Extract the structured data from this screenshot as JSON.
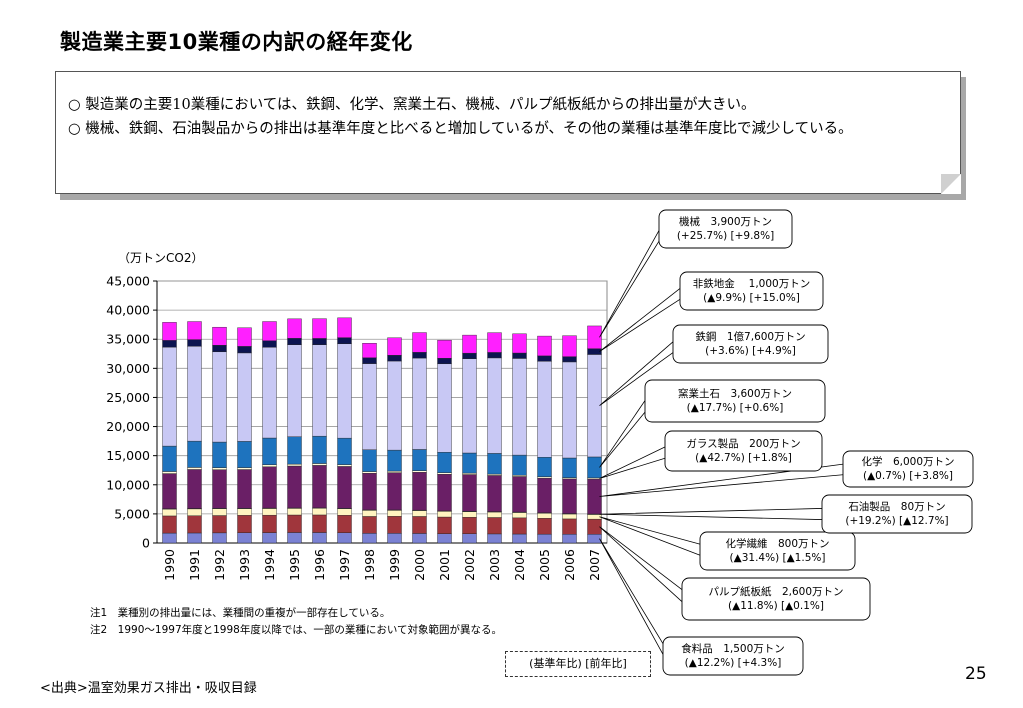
{
  "title": "製造業主要10業種の内訳の経年変化",
  "summary": [
    "○ 製造業の主要10業種においては、鉄鋼、化学、窯業土石、機械、パルプ紙板紙からの排出量が大きい。",
    "○ 機械、鉄鋼、石油製品からの排出は基準年度と比べると増加しているが、その他の業種は基準年度比で減少している。"
  ],
  "notes": [
    "注1　業種別の排出量には、業種間の重複が一部存在している。",
    "注2　1990～1997年度と1998年度以降では、一部の業種において対象範囲が異なる。"
  ],
  "source": "<出典>温室効果ガス排出・吸収目録",
  "page_number": "25",
  "base_legend": "(基準年比) [前年比]",
  "chart_data": {
    "type": "bar",
    "stacked": true,
    "ylabel": "（万トンCO2）",
    "ylim": [
      0,
      45000
    ],
    "yticks": [
      "0",
      "5,000",
      "10,000",
      "15,000",
      "20,000",
      "25,000",
      "30,000",
      "35,000",
      "40,000",
      "45,000"
    ],
    "categories": [
      "1990",
      "1991",
      "1992",
      "1993",
      "1994",
      "1995",
      "1996",
      "1997",
      "1998",
      "1999",
      "2000",
      "2001",
      "2002",
      "2003",
      "2004",
      "2005",
      "2006",
      "2007"
    ],
    "series": [
      {
        "name": "食料品",
        "color": "#7b82d4",
        "values": [
          1700,
          1720,
          1740,
          1760,
          1780,
          1800,
          1800,
          1760,
          1660,
          1660,
          1640,
          1600,
          1580,
          1560,
          1540,
          1520,
          1500,
          1500
        ]
      },
      {
        "name": "パルプ紙板紙",
        "color": "#a0363c",
        "values": [
          2950,
          2970,
          2980,
          2990,
          3000,
          3010,
          3020,
          3000,
          2900,
          2920,
          2920,
          2860,
          2840,
          2820,
          2780,
          2720,
          2640,
          2600
        ]
      },
      {
        "name": "化学繊維",
        "color": "#fff4c0",
        "values": [
          1170,
          1170,
          1160,
          1150,
          1150,
          1140,
          1140,
          1120,
          1050,
          1030,
          1010,
          980,
          960,
          940,
          920,
          880,
          840,
          800
        ]
      },
      {
        "name": "石油製品",
        "color": "#b0b0e8",
        "values": [
          67,
          68,
          68,
          69,
          70,
          71,
          72,
          73,
          74,
          75,
          76,
          77,
          78,
          79,
          80,
          80,
          80,
          80
        ]
      },
      {
        "name": "化学",
        "color": "#6a1f66",
        "values": [
          6040,
          6700,
          6650,
          6650,
          7100,
          7200,
          7300,
          7200,
          6300,
          6400,
          6500,
          6300,
          6300,
          6200,
          6100,
          5950,
          5950,
          6000
        ]
      },
      {
        "name": "ガラス製品",
        "color": "#fff8d8",
        "values": [
          350,
          350,
          340,
          330,
          330,
          330,
          320,
          310,
          280,
          270,
          270,
          260,
          250,
          240,
          230,
          220,
          210,
          200
        ]
      },
      {
        "name": "窯業土石",
        "color": "#1e73be",
        "values": [
          4370,
          4520,
          4400,
          4500,
          4600,
          4700,
          4700,
          4550,
          3750,
          3600,
          3650,
          3500,
          3450,
          3550,
          3450,
          3350,
          3380,
          3600
        ]
      },
      {
        "name": "鉄鋼",
        "color": "#c8c8f4",
        "values": [
          17000,
          16300,
          15500,
          15200,
          15600,
          15800,
          15700,
          16200,
          14800,
          15300,
          15700,
          15200,
          16200,
          16400,
          16600,
          16500,
          16500,
          17600
        ]
      },
      {
        "name": "非鉄地金",
        "color": "#0c1450",
        "values": [
          1150,
          1140,
          1130,
          1120,
          1110,
          1100,
          1080,
          1060,
          1000,
          990,
          980,
          960,
          950,
          940,
          930,
          920,
          910,
          1000
        ]
      },
      {
        "name": "機械",
        "color": "#ff20ff",
        "values": [
          3100,
          3100,
          3100,
          3200,
          3300,
          3350,
          3400,
          3400,
          2500,
          3000,
          3400,
          3100,
          3100,
          3400,
          3300,
          3400,
          3600,
          3900
        ]
      }
    ]
  },
  "callouts": [
    {
      "name": "機械",
      "line1": "機械　3,900万トン",
      "line2": "(+25.7%) [+9.8%]"
    },
    {
      "name": "非鉄地金",
      "line1": "非鉄地金　 1,000万トン",
      "line2": "(▲9.9%) [+15.0%]"
    },
    {
      "name": "鉄鋼",
      "line1": "鉄鋼　1億7,600万トン",
      "line2": "(+3.6%) [+4.9%]"
    },
    {
      "name": "窯業土石",
      "line1": "窯業土石　3,600万トン",
      "line2": "(▲17.7%) [+0.6%]"
    },
    {
      "name": "ガラス製品",
      "line1": "ガラス製品　200万トン",
      "line2": "(▲42.7%) [+1.8%]"
    },
    {
      "name": "化学",
      "line1": "化学　6,000万トン",
      "line2": "(▲0.7%) [+3.8%]"
    },
    {
      "name": "石油製品",
      "line1": "石油製品　80万トン",
      "line2": "(+19.2%) [▲12.7%]"
    },
    {
      "name": "化学繊維",
      "line1": "化学繊維　800万トン",
      "line2": "(▲31.4%) [▲1.5%]"
    },
    {
      "name": "パルプ紙板紙",
      "line1": "パルプ紙板紙　2,600万トン",
      "line2": "(▲11.8%) [▲0.1%]"
    },
    {
      "name": "食料品",
      "line1": "食料品　1,500万トン",
      "line2": "(▲12.2%) [+4.3%]"
    }
  ]
}
